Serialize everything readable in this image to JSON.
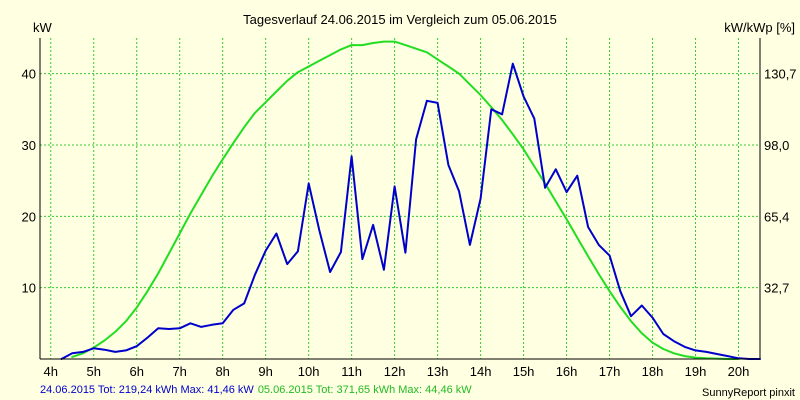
{
  "chart_data": {
    "type": "line",
    "title": "Tagesverlauf 24.06.2015 im Vergleich zum 05.06.2015",
    "ylabel_left": "kW",
    "ylabel_right": "kW/kWp [%]",
    "x_ticks": [
      "4h",
      "5h",
      "6h",
      "7h",
      "8h",
      "9h",
      "10h",
      "11h",
      "12h",
      "13h",
      "14h",
      "15h",
      "16h",
      "17h",
      "18h",
      "19h",
      "20h"
    ],
    "y_ticks_left": [
      "10",
      "20",
      "30",
      "40"
    ],
    "y_ticks_right": [
      "32,7",
      "65,4",
      "98,0",
      "130,7"
    ],
    "xlim": [
      3.75,
      20.5
    ],
    "ylim": [
      0,
      45
    ],
    "grid": true,
    "series": [
      {
        "name": "24.06.2015",
        "color": "#0000cc",
        "x": [
          4.25,
          4.5,
          4.75,
          5.0,
          5.25,
          5.5,
          5.75,
          6.0,
          6.25,
          6.5,
          6.75,
          7.0,
          7.25,
          7.5,
          7.75,
          8.0,
          8.25,
          8.5,
          8.75,
          9.0,
          9.25,
          9.5,
          9.75,
          10.0,
          10.25,
          10.5,
          10.75,
          11.0,
          11.25,
          11.5,
          11.75,
          12.0,
          12.25,
          12.5,
          12.75,
          13.0,
          13.25,
          13.5,
          13.75,
          14.0,
          14.25,
          14.5,
          14.75,
          15.0,
          15.25,
          15.5,
          15.75,
          16.0,
          16.25,
          16.5,
          16.75,
          17.0,
          17.25,
          17.5,
          17.75,
          18.0,
          18.25,
          18.5,
          18.75,
          19.0,
          19.25,
          19.5,
          19.75,
          20.0,
          20.25,
          20.5
        ],
        "values": [
          0.0,
          0.8,
          1.0,
          1.5,
          1.3,
          1.0,
          1.2,
          1.8,
          3.0,
          4.3,
          4.2,
          4.3,
          5.0,
          4.5,
          4.8,
          5.0,
          6.9,
          7.8,
          11.8,
          15.2,
          17.6,
          13.3,
          15.1,
          24.6,
          18.0,
          12.2,
          15.0,
          28.4,
          14.0,
          18.8,
          12.5,
          24.2,
          14.9,
          30.8,
          36.2,
          35.9,
          27.2,
          23.5,
          16.0,
          22.5,
          35.0,
          34.3,
          41.4,
          36.8,
          33.7,
          24.0,
          26.6,
          23.4,
          25.7,
          18.5,
          16.0,
          14.5,
          9.5,
          6.0,
          7.5,
          5.8,
          3.5,
          2.5,
          1.7,
          1.2,
          1.0,
          0.7,
          0.4,
          0.1,
          0.0,
          0.0
        ]
      },
      {
        "name": "05.06.2015",
        "color": "#22dd22",
        "x": [
          4.5,
          4.75,
          5.0,
          5.25,
          5.5,
          5.75,
          6.0,
          6.25,
          6.5,
          6.75,
          7.0,
          7.25,
          7.5,
          7.75,
          8.0,
          8.25,
          8.5,
          8.75,
          9.0,
          9.25,
          9.5,
          9.75,
          10.0,
          10.25,
          10.5,
          10.75,
          11.0,
          11.25,
          11.5,
          11.75,
          12.0,
          12.25,
          12.5,
          12.75,
          13.0,
          13.25,
          13.5,
          13.75,
          14.0,
          14.25,
          14.5,
          14.75,
          15.0,
          15.25,
          15.5,
          15.75,
          16.0,
          16.25,
          16.5,
          16.75,
          17.0,
          17.25,
          17.5,
          17.75,
          18.0,
          18.25,
          18.5,
          18.75,
          19.0,
          19.25,
          19.5,
          19.75,
          20.0
        ],
        "values": [
          0.3,
          0.8,
          1.6,
          2.6,
          3.8,
          5.3,
          7.2,
          9.5,
          12.0,
          14.8,
          17.6,
          20.4,
          23.0,
          25.6,
          28.0,
          30.3,
          32.5,
          34.5,
          36.0,
          37.5,
          39.0,
          40.2,
          41.0,
          41.8,
          42.6,
          43.4,
          44.0,
          44.0,
          44.3,
          44.5,
          44.5,
          44.0,
          43.5,
          43.0,
          42.0,
          41.0,
          40.0,
          38.5,
          37.0,
          35.3,
          33.5,
          31.5,
          29.4,
          27.0,
          24.6,
          22.1,
          19.6,
          17.0,
          14.4,
          11.9,
          9.5,
          7.3,
          5.3,
          3.6,
          2.3,
          1.4,
          0.8,
          0.4,
          0.2,
          0.1,
          0.05,
          0.0,
          0.0
        ]
      }
    ]
  },
  "footer": {
    "line1_blue": "24.06.2015 Tot: 219,24 kWh Max: 41,46 kW",
    "line1_green": "05.06.2015 Tot: 371,65 kWh Max: 44,46 kW",
    "credit": "SunnyReport pinxit"
  }
}
